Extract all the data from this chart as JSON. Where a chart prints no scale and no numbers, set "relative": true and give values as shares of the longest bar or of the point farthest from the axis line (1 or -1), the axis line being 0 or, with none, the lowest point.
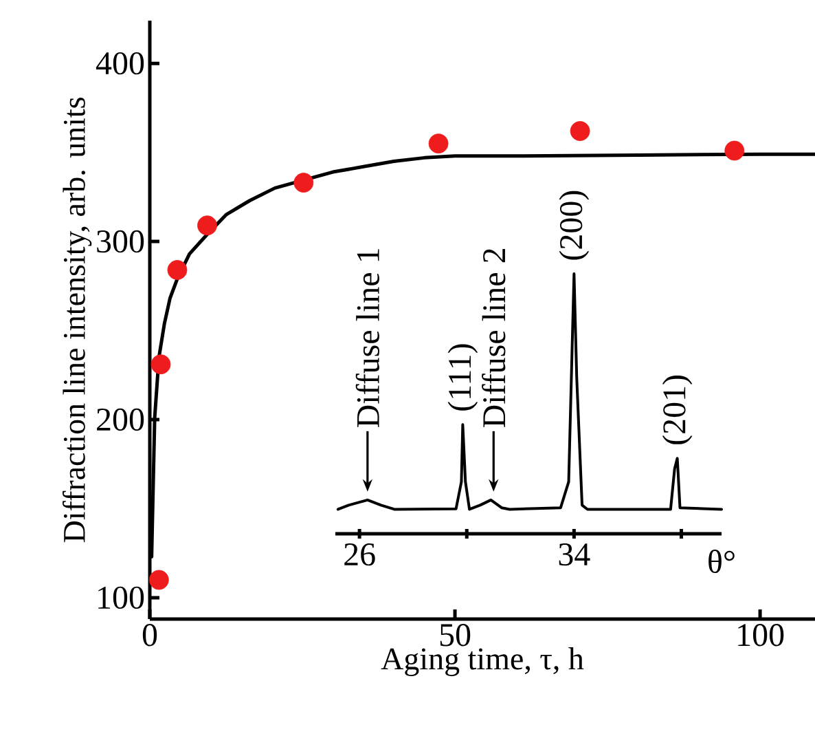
{
  "chart_data": [
    {
      "type": "scatter",
      "xlabel": "Aging time, τ, h",
      "ylabel": "Diffraction line intensity, arb. units",
      "xlim": [
        0,
        109
      ],
      "ylim": [
        88,
        424
      ],
      "xticks": [
        0,
        50,
        100
      ],
      "yticks": [
        100,
        200,
        300,
        400
      ],
      "series": [
        {
          "type": "line",
          "color": "#000000",
          "marker": "none",
          "x": [
            0.3,
            0.8,
            1.5,
            2.4,
            3.3,
            4.5,
            6.5,
            9.4,
            12.5,
            16.4,
            20.5,
            25,
            30,
            35,
            40,
            45,
            50,
            60,
            80,
            100,
            109
          ],
          "values": [
            123,
            201,
            235,
            254,
            268,
            279,
            293,
            304,
            315,
            323,
            330,
            null,
            339,
            342,
            345,
            347,
            348,
            348,
            348.5,
            349,
            349
          ]
        },
        {
          "type": "scatter",
          "color": "#ee1c1c",
          "marker": "circle",
          "x": [
            1.5,
            1.8,
            4.5,
            9.4,
            25.2,
            47.3,
            70.5,
            95.8
          ],
          "values": [
            110,
            231,
            284,
            309,
            333,
            355,
            362,
            351
          ]
        }
      ]
    },
    {
      "type": "line",
      "relative": true,
      "color": "#000000",
      "xlabel": "θ°",
      "xlim": [
        25.1,
        39.5
      ],
      "xticks": [
        26,
        {
          "value": 30,
          "label": null
        },
        34,
        {
          "value": 38,
          "label": null
        }
      ],
      "x": [
        25.2,
        25.6,
        26.3,
        26.8,
        27.3,
        29.6,
        29.8,
        29.85,
        29.95,
        30.1,
        30.5,
        30.9,
        31.3,
        31.6,
        33.5,
        33.8,
        33.9,
        34.0,
        34.1,
        34.3,
        34.5,
        37.6,
        37.75,
        37.85,
        37.95,
        39.5
      ],
      "values": [
        0.094,
        0.11,
        0.13,
        0.11,
        0.094,
        0.096,
        0.2,
        0.42,
        0.2,
        0.094,
        0.11,
        0.13,
        0.1,
        0.094,
        0.1,
        0.2,
        0.6,
        1.0,
        0.6,
        0.11,
        0.094,
        0.094,
        0.25,
        0.29,
        0.1,
        0.094
      ],
      "annotations": [
        {
          "text": "Diffuse line 1",
          "x": 26.3,
          "y": 0.13
        },
        {
          "text": "(111)",
          "x": 29.85,
          "y": 0.42
        },
        {
          "text": "Diffuse line 2",
          "x": 31.0,
          "y": 0.13
        },
        {
          "text": "(200)",
          "x": 34.0,
          "y": 1.0
        },
        {
          "text": "(201)",
          "x": 37.85,
          "y": 0.29
        }
      ]
    }
  ]
}
